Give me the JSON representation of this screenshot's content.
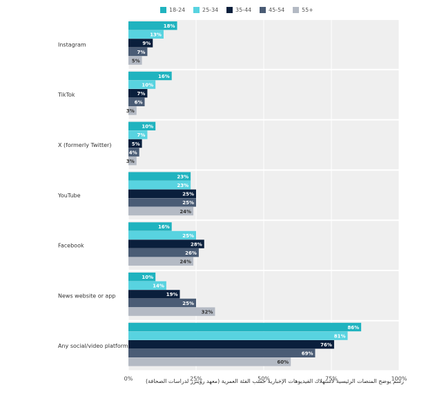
{
  "chart_data": {
    "type": "bar",
    "orientation": "horizontal",
    "categories": [
      "Instagram",
      "TikTok",
      "X (formerly Twitter)",
      "YouTube",
      "Facebook",
      "News website or app",
      "Any social/video platform"
    ],
    "series": [
      {
        "name": "18-24",
        "color": "#20b3bf",
        "values": [
          18,
          16,
          10,
          23,
          16,
          10,
          86
        ]
      },
      {
        "name": "25-34",
        "color": "#58d3e0",
        "values": [
          13,
          10,
          7,
          23,
          25,
          14,
          81
        ]
      },
      {
        "name": "35-44",
        "color": "#0a1f3c",
        "values": [
          9,
          7,
          5,
          25,
          28,
          19,
          76
        ]
      },
      {
        "name": "45-54",
        "color": "#4a5c75",
        "values": [
          7,
          6,
          4,
          25,
          26,
          25,
          69
        ]
      },
      {
        "name": "55+",
        "color": "#b4bac4",
        "values": [
          5,
          3,
          3,
          24,
          24,
          32,
          60
        ]
      }
    ],
    "value_suffix": "%",
    "xlim": [
      0,
      100
    ],
    "xticks": [
      0,
      25,
      50,
      75,
      100
    ],
    "xtick_labels": [
      "0%",
      "25%",
      "50%",
      "75%",
      "100%"
    ],
    "grid": true,
    "legend_position": "top-center",
    "title": "",
    "xlabel": "",
    "ylabel": ""
  },
  "caption": "رسم يوضح المنصات الرئيسية لاستهلاك الفيديوهات الإخبارية حسب الفئة العمرية (معهد رويترز لدراسات الصحافة)"
}
